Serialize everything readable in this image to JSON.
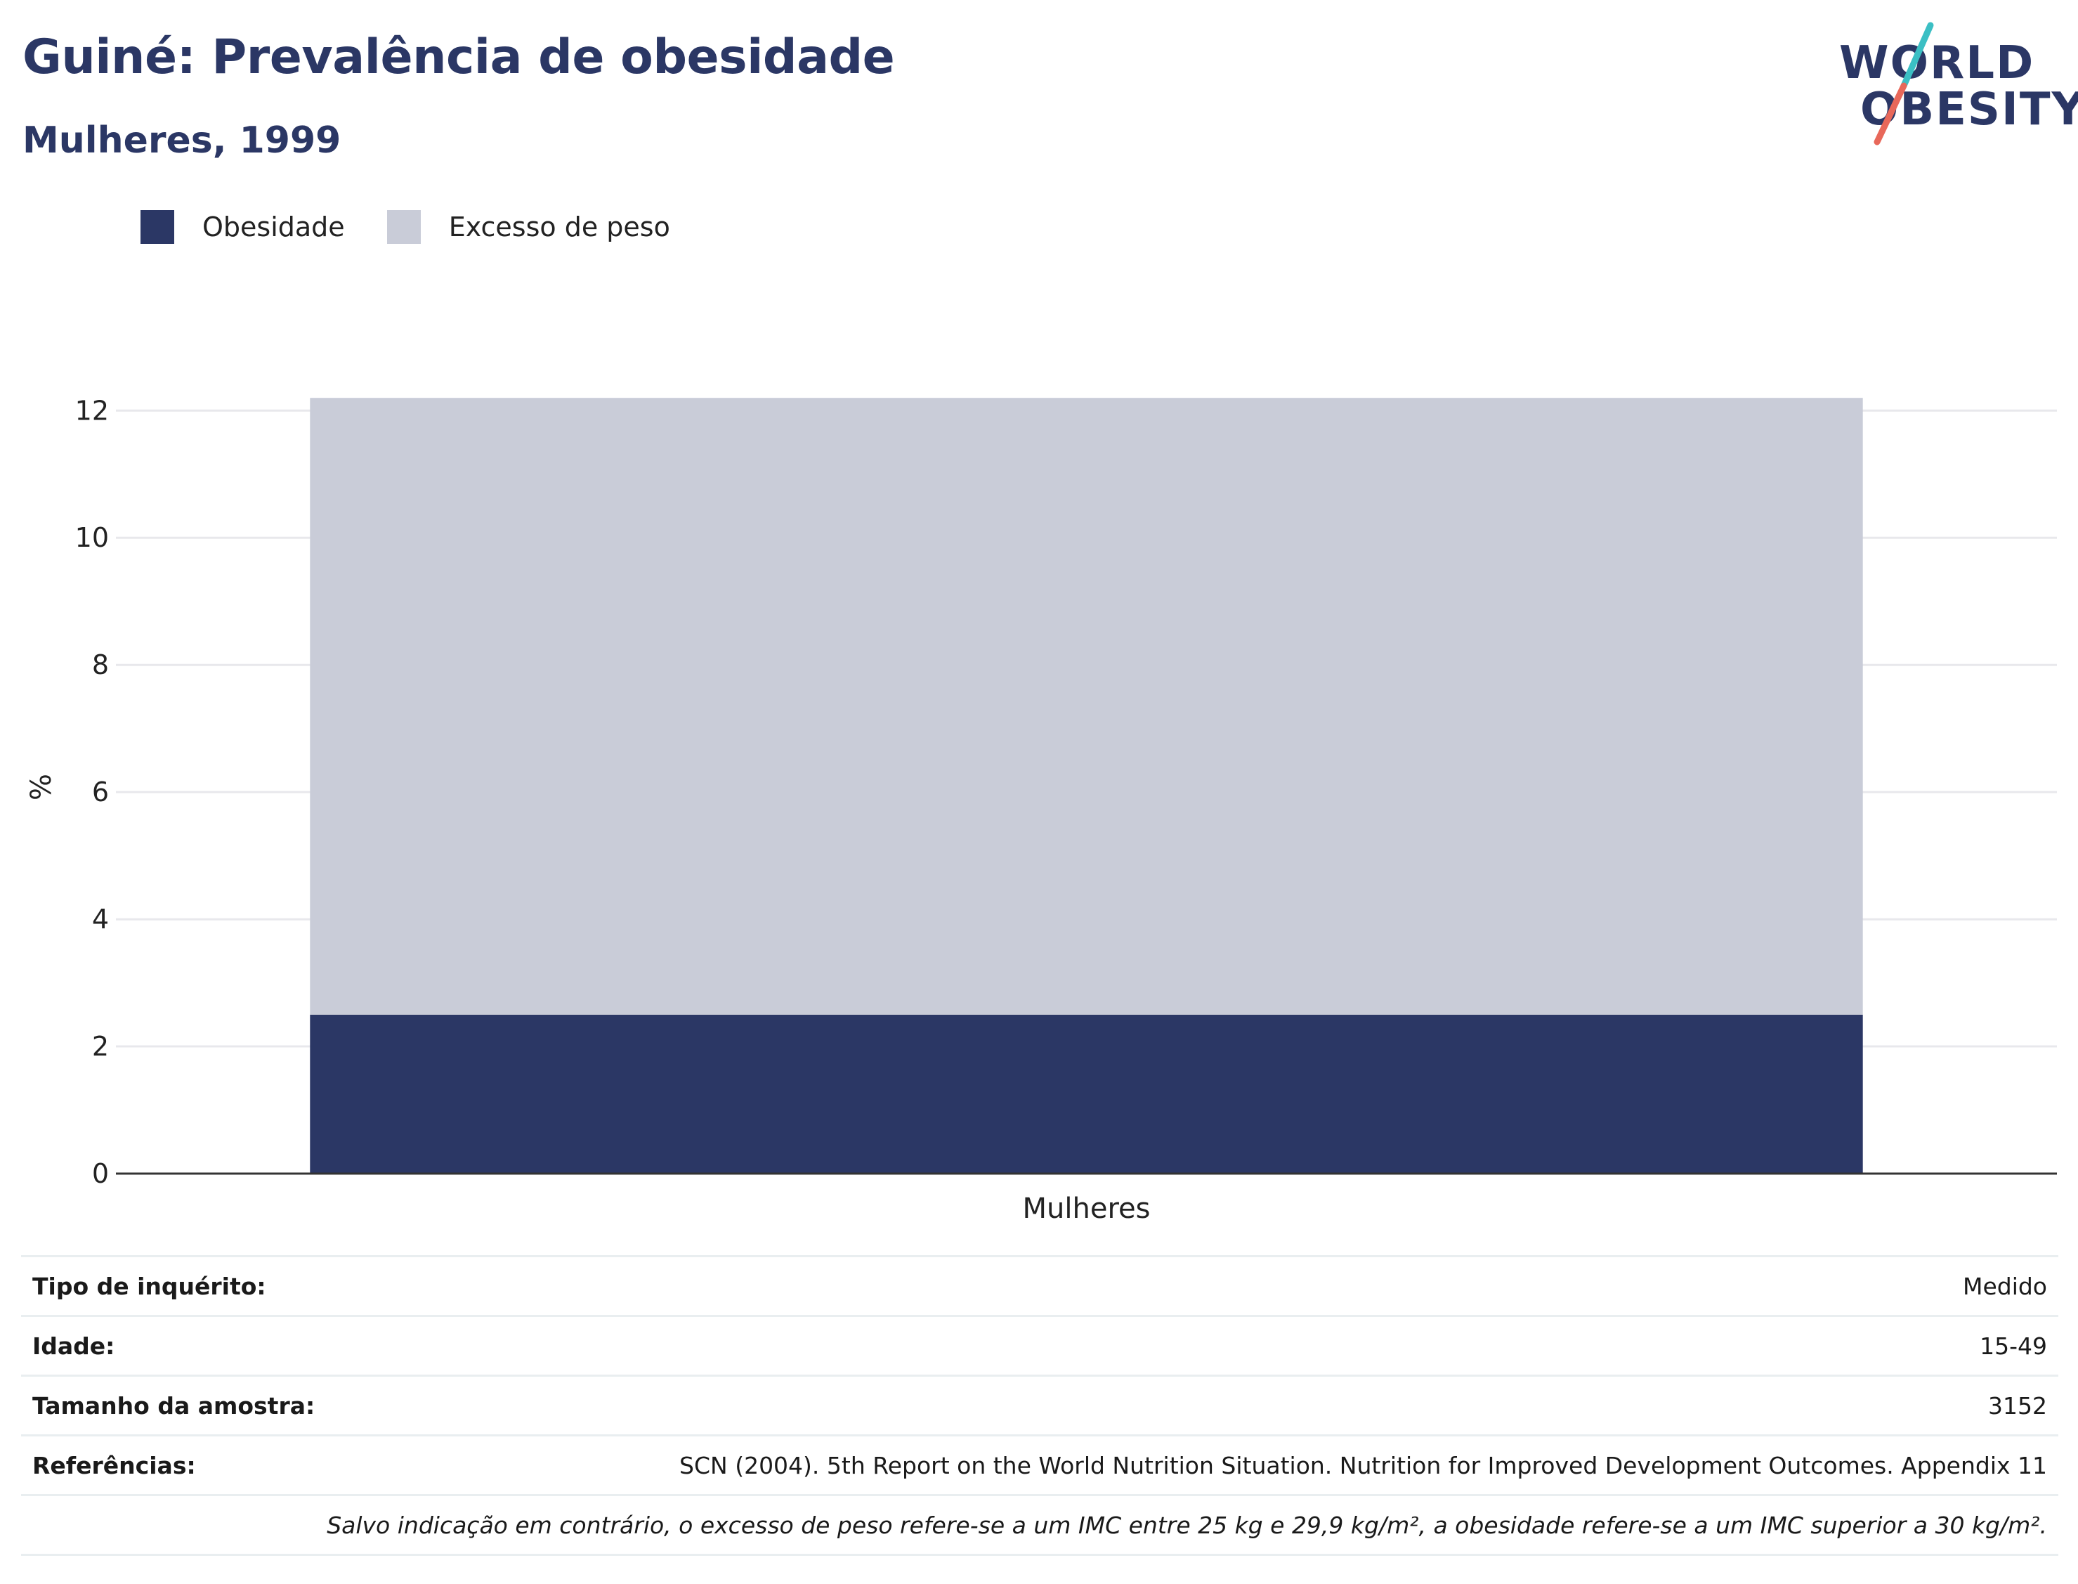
{
  "header": {
    "title": "Guiné: Prevalência de obesidade",
    "subtitle": "Mulheres, 1999"
  },
  "logo": {
    "line1": "WORLD",
    "line2": "OBESITY",
    "accent_colors": [
      "#3bbfc4",
      "#e8685a"
    ]
  },
  "legend": [
    {
      "label": "Obesidade",
      "color": "#2b3765"
    },
    {
      "label": "Excesso de peso",
      "color": "#c9ccd8"
    }
  ],
  "chart_data": {
    "type": "bar",
    "stacked": true,
    "categories": [
      "Mulheres"
    ],
    "series": [
      {
        "name": "Obesidade",
        "values": [
          2.5
        ],
        "color": "#2b3765"
      },
      {
        "name": "Excesso de peso",
        "values": [
          9.7
        ],
        "color": "#c9ccd8"
      }
    ],
    "ylabel": "%",
    "ylim": [
      0,
      12.6
    ],
    "yticks": [
      0,
      2,
      4,
      6,
      8,
      10,
      12
    ],
    "grid": true,
    "legend_position": "top-left"
  },
  "info": [
    {
      "key": "Tipo de inquérito:",
      "value": "Medido"
    },
    {
      "key": "Idade:",
      "value": "15-49"
    },
    {
      "key": "Tamanho da amostra:",
      "value": "3152"
    },
    {
      "key": "Referências:",
      "value": "SCN (2004). 5th Report on the World Nutrition Situation. Nutrition for Improved Development Outcomes. Appendix 11"
    }
  ],
  "note": "Salvo indicação em contrário, o excesso de peso refere-se a um IMC entre 25 kg e 29,9 kg/m², a obesidade refere-se a um IMC superior a 30 kg/m²."
}
